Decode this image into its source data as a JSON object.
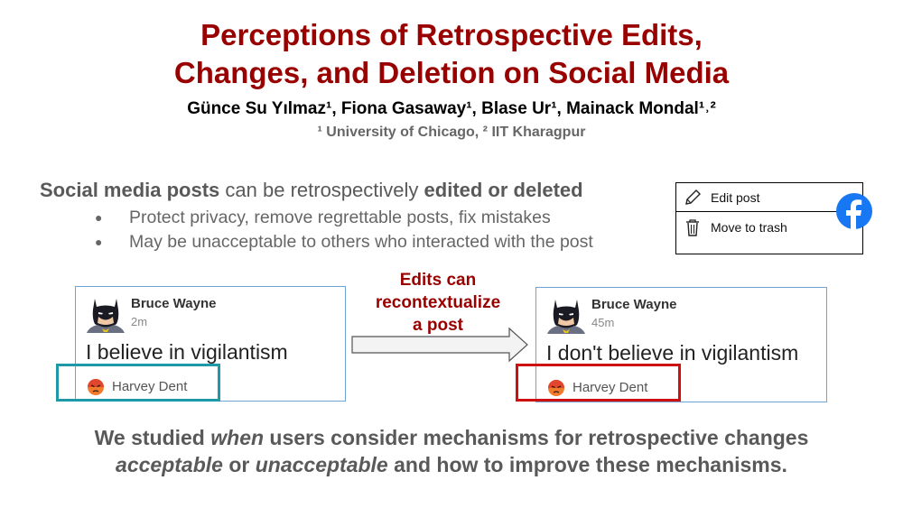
{
  "header": {
    "title_line1": "Perceptions of Retrospective Edits,",
    "title_line2": "Changes, and Deletion on Social Media",
    "authors": "Günce Su Yılmaz¹, Fiona Gasaway¹, Blase Ur¹, Mainack Mondal¹˒²",
    "affiliations": "¹ University of Chicago, ² IIT Kharagpur"
  },
  "intro": {
    "part1": "Social media posts",
    "part2": " can be retrospectively ",
    "part3": "edited or deleted",
    "bullets": [
      "Protect privacy, remove regrettable posts, fix mistakes",
      "May be unacceptable to others who interacted with the post"
    ]
  },
  "fb_menu": {
    "edit_label": "Edit post",
    "trash_label": "Move to trash",
    "icons": [
      "pencil-icon",
      "trash-icon",
      "facebook-icon"
    ],
    "brand_color": "#1877f2"
  },
  "posts": {
    "before": {
      "name": "Bruce Wayne",
      "time": "2m",
      "text": "I believe in vigilantism",
      "reactor": "Harvey Dent",
      "highlight_color": "#1f99a6"
    },
    "after": {
      "name": "Bruce Wayne",
      "time": "45m",
      "text": "I don't believe in vigilantism",
      "reactor": "Harvey Dent",
      "highlight_color": "#d01010"
    }
  },
  "arrow_caption": {
    "line1": "Edits can",
    "line2": "recontextualize",
    "line3": "a post"
  },
  "conclusion": {
    "l1_a": "We studied ",
    "l1_b": "when",
    "l1_c": " users consider mechanisms for retrospective changes",
    "l2_a": "acceptable",
    "l2_b": " or ",
    "l2_c": "unacceptable",
    "l2_d": " and how to improve these mechanisms."
  },
  "colors": {
    "title": "#990000",
    "body_text": "#595959"
  }
}
